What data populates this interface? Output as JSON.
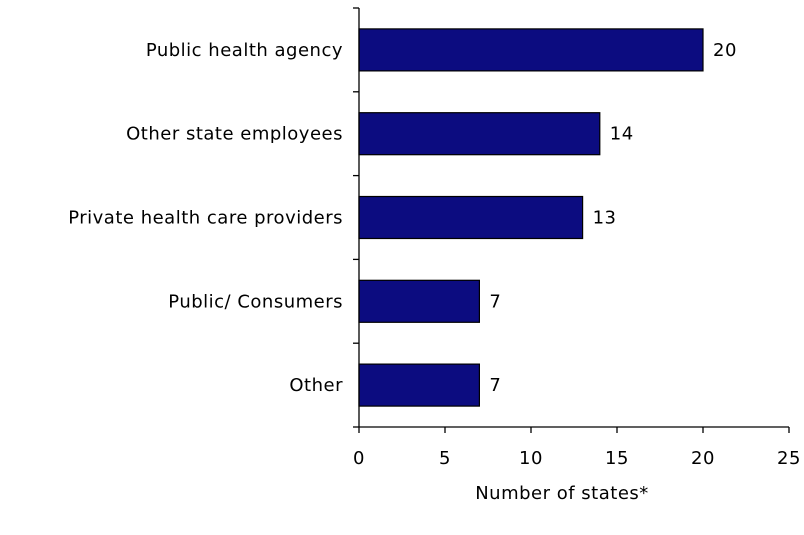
{
  "chart_data": {
    "type": "bar",
    "orientation": "horizontal",
    "categories": [
      "Public health agency",
      "Other state employees",
      "Private health care providers",
      "Public/ Consumers",
      "Other"
    ],
    "values": [
      20,
      14,
      13,
      7,
      7
    ],
    "data_labels": [
      "20",
      "14",
      "13",
      "7",
      "7"
    ],
    "xlabel": "Number of states*",
    "xlim": [
      0,
      25
    ],
    "xticks": [
      0,
      5,
      10,
      15,
      20,
      25
    ],
    "xtick_labels": [
      "0",
      "5",
      "10",
      "15",
      "20",
      "25"
    ],
    "grid": false,
    "bar_color": "#0c0c80"
  }
}
